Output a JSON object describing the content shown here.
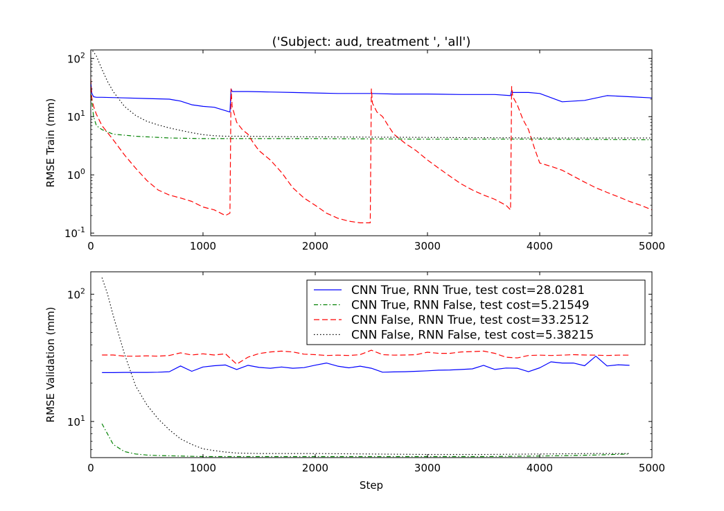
{
  "figure": {
    "title": "('Subject: aud, treatment ', 'all')"
  },
  "chart_data": [
    {
      "type": "line",
      "title": "('Subject: aud, treatment ', 'all')",
      "xlabel": "",
      "ylabel": "RMSE Train (mm)",
      "xlim": [
        0,
        5000
      ],
      "ylim": [
        0.09,
        140
      ],
      "yscale": "log",
      "x_ticks": [
        "0",
        "1000",
        "2000",
        "3000",
        "4000",
        "5000"
      ],
      "y_ticks": [
        {
          "base": "10",
          "exp": "2",
          "value": 100
        },
        {
          "base": "10",
          "exp": "1",
          "value": 10
        },
        {
          "base": "10",
          "exp": "0",
          "value": 1
        },
        {
          "base": "10",
          "exp": "-1",
          "value": 0.1
        }
      ],
      "series": [
        {
          "key": "cnn_rnn",
          "color": "#0000ff",
          "dash": "",
          "x": [
            0,
            10,
            25,
            50,
            100,
            300,
            500,
            700,
            800,
            900,
            1000,
            1100,
            1240,
            1250,
            1260,
            1400,
            1600,
            1800,
            2000,
            2200,
            2400,
            2500,
            2700,
            3000,
            3300,
            3600,
            3740,
            3750,
            3760,
            3900,
            4000,
            4200,
            4400,
            4600,
            4800,
            5000
          ],
          "y": [
            40,
            25,
            22,
            21.5,
            21.5,
            21,
            20.5,
            20,
            18.5,
            16,
            15,
            14.5,
            12,
            30,
            27,
            27,
            26.5,
            26,
            25.5,
            25,
            25,
            25,
            24.5,
            24.5,
            24,
            24,
            23,
            28,
            26,
            26,
            25,
            18,
            19,
            23,
            22,
            21
          ]
        },
        {
          "key": "cnn_only",
          "color": "#008000",
          "dash": "6,3,1.5,3",
          "x": [
            0,
            25,
            50,
            100,
            200,
            400,
            700,
            1000,
            1500,
            2000,
            3000,
            4000,
            5000
          ],
          "y": [
            25,
            10,
            7,
            6,
            5,
            4.6,
            4.3,
            4.2,
            4.2,
            4.2,
            4.1,
            4.1,
            4.0
          ]
        },
        {
          "key": "rnn_only",
          "color": "#ff0000",
          "dash": "8,4",
          "x": [
            0,
            10,
            25,
            50,
            100,
            200,
            300,
            400,
            500,
            600,
            700,
            800,
            900,
            1000,
            1100,
            1200,
            1240,
            1250,
            1260,
            1300,
            1350,
            1400,
            1450,
            1500,
            1600,
            1700,
            1800,
            1900,
            2000,
            2100,
            2200,
            2300,
            2400,
            2490,
            2500,
            2510,
            2550,
            2600,
            2650,
            2700,
            2800,
            2900,
            3000,
            3100,
            3200,
            3300,
            3400,
            3500,
            3600,
            3700,
            3740,
            3750,
            3760,
            3800,
            3850,
            3900,
            3950,
            4000,
            4100,
            4200,
            4300,
            4400,
            4500,
            4600,
            4700,
            4800,
            4900,
            5000
          ],
          "y": [
            45,
            20,
            15,
            11,
            7,
            4,
            2.2,
            1.3,
            0.8,
            0.55,
            0.45,
            0.4,
            0.35,
            0.28,
            0.25,
            0.2,
            0.22,
            30,
            15,
            8,
            6,
            5,
            3.5,
            2.6,
            1.8,
            1.1,
            0.6,
            0.4,
            0.3,
            0.22,
            0.18,
            0.16,
            0.15,
            0.15,
            30,
            17,
            12,
            10,
            7,
            5,
            3.5,
            2.6,
            1.8,
            1.3,
            0.95,
            0.7,
            0.55,
            0.45,
            0.38,
            0.3,
            0.25,
            33,
            22,
            16,
            9,
            6,
            3,
            1.6,
            1.4,
            1.2,
            0.95,
            0.75,
            0.6,
            0.5,
            0.42,
            0.35,
            0.3,
            0.25
          ]
        },
        {
          "key": "baseline",
          "color": "#000000",
          "dash": "1.5,3",
          "x": [
            0,
            50,
            100,
            150,
            200,
            300,
            400,
            500,
            600,
            700,
            800,
            900,
            1000,
            1100,
            1200,
            1400,
            1600,
            2000,
            3000,
            4000,
            5000
          ],
          "y": [
            150,
            110,
            65,
            40,
            27,
            15,
            10.5,
            8.3,
            7.2,
            6.4,
            5.8,
            5.3,
            4.9,
            4.7,
            4.6,
            4.6,
            4.55,
            4.5,
            4.4,
            4.3,
            4.3
          ]
        }
      ]
    },
    {
      "type": "line",
      "xlabel": "Step",
      "ylabel": "RMSE Validation (mm)",
      "xlim": [
        0,
        5000
      ],
      "ylim": [
        5.2,
        150
      ],
      "yscale": "log",
      "x_ticks": [
        "0",
        "1000",
        "2000",
        "3000",
        "4000",
        "5000"
      ],
      "y_ticks": [
        {
          "base": "10",
          "exp": "2",
          "value": 100
        },
        {
          "base": "10",
          "exp": "1",
          "value": 10
        }
      ],
      "legend_position": "top-right",
      "series": [
        {
          "key": "cnn_rnn",
          "name": "CNN True, RNN True, test cost=28.0281",
          "color": "#0000ff",
          "dash": "",
          "x": [
            100,
            200,
            300,
            400,
            500,
            600,
            700,
            800,
            900,
            1000,
            1100,
            1200,
            1300,
            1400,
            1500,
            1600,
            1700,
            1800,
            1900,
            2000,
            2100,
            2200,
            2300,
            2400,
            2500,
            2600,
            2700,
            2800,
            2900,
            3000,
            3100,
            3200,
            3300,
            3400,
            3500,
            3600,
            3700,
            3800,
            3900,
            4000,
            4100,
            4200,
            4300,
            4400,
            4500,
            4600,
            4700,
            4800
          ],
          "y": [
            24.2,
            24.2,
            24.3,
            24.3,
            24.3,
            24.4,
            24.6,
            27.3,
            24.8,
            26.8,
            27.4,
            27.8,
            25.6,
            27.6,
            26.6,
            26.2,
            26.8,
            26.2,
            26.5,
            27.7,
            28.8,
            27.2,
            26.4,
            27.2,
            26.2,
            24.4,
            24.5,
            24.6,
            24.8,
            25.0,
            25.3,
            25.4,
            25.6,
            25.9,
            27.6,
            25.6,
            26.3,
            26.2,
            24.6,
            26.4,
            29.4,
            28.8,
            28.8,
            27.4,
            32.6,
            27.3,
            27.9,
            27.6
          ]
        },
        {
          "key": "cnn_only",
          "name": "CNN True, RNN False, test cost=5.21549",
          "color": "#008000",
          "dash": "6,3,1.5,3",
          "x": [
            100,
            200,
            300,
            400,
            500,
            600,
            800,
            1000,
            1500,
            2000,
            2500,
            3000,
            3500,
            4000,
            4500,
            4800
          ],
          "y": [
            9.6,
            6.6,
            5.8,
            5.55,
            5.45,
            5.4,
            5.35,
            5.3,
            5.3,
            5.3,
            5.3,
            5.3,
            5.3,
            5.35,
            5.45,
            5.55
          ]
        },
        {
          "key": "rnn_only",
          "name": "CNN False, RNN True, test cost=33.2512",
          "color": "#ff0000",
          "dash": "8,4",
          "x": [
            100,
            200,
            300,
            400,
            500,
            600,
            700,
            800,
            900,
            1000,
            1100,
            1200,
            1300,
            1400,
            1500,
            1600,
            1700,
            1800,
            1900,
            2000,
            2100,
            2200,
            2300,
            2400,
            2500,
            2600,
            2700,
            2800,
            2900,
            3000,
            3100,
            3200,
            3300,
            3400,
            3500,
            3600,
            3700,
            3800,
            3900,
            4000,
            4100,
            4200,
            4300,
            4400,
            4500,
            4600,
            4700,
            4800
          ],
          "y": [
            33.3,
            33.3,
            32.6,
            32.6,
            32.8,
            32.6,
            33.0,
            34.6,
            33.3,
            34.0,
            33.3,
            34.0,
            28.2,
            32.0,
            34.2,
            35.2,
            35.7,
            35.2,
            33.8,
            33.5,
            33.0,
            33.2,
            33.0,
            33.5,
            36.3,
            33.5,
            33.2,
            33.3,
            33.5,
            35.0,
            34.3,
            34.3,
            35.2,
            35.4,
            35.7,
            34.3,
            32.0,
            31.6,
            33.0,
            33.2,
            33.0,
            33.2,
            33.5,
            33.3,
            33.2,
            33.0,
            33.2,
            33.2
          ]
        },
        {
          "key": "baseline",
          "name": "CNN False, RNN False, test cost=5.38215",
          "color": "#000000",
          "dash": "1.5,3",
          "x": [
            100,
            150,
            200,
            250,
            300,
            400,
            500,
            600,
            700,
            800,
            900,
            1000,
            1100,
            1200,
            1300,
            1500,
            2000,
            2500,
            3000,
            3500,
            4000,
            4500,
            4800
          ],
          "y": [
            135,
            100,
            68,
            48,
            34,
            19,
            13.5,
            10.5,
            8.6,
            7.3,
            6.6,
            6.1,
            5.9,
            5.75,
            5.65,
            5.6,
            5.6,
            5.55,
            5.5,
            5.5,
            5.55,
            5.6,
            5.6
          ]
        }
      ]
    }
  ]
}
